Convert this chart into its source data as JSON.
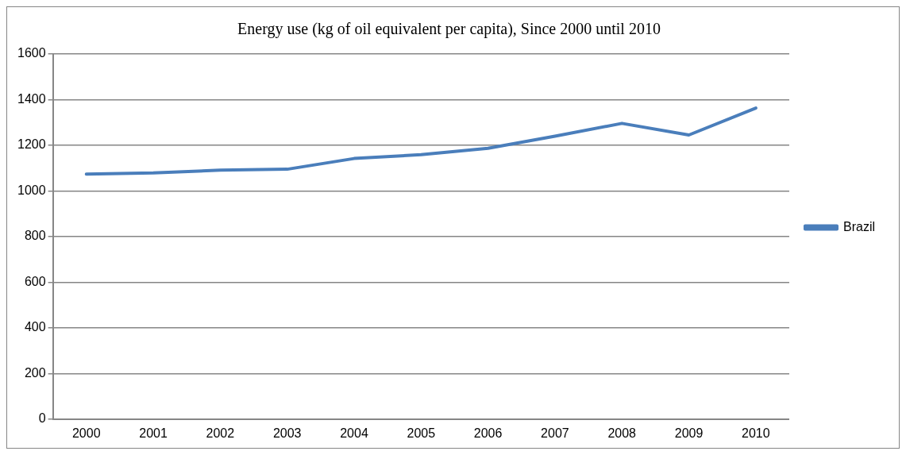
{
  "chart_data": {
    "type": "line",
    "title": "Energy use (kg of oil equivalent per capita), Since 2000 until 2010",
    "categories": [
      "2000",
      "2001",
      "2002",
      "2003",
      "2004",
      "2005",
      "2006",
      "2007",
      "2008",
      "2009",
      "2010"
    ],
    "series": [
      {
        "name": "Brazil",
        "color": "#4a7ebb",
        "values": [
          1074,
          1079,
          1091,
          1095,
          1142,
          1159,
          1187,
          1240,
          1296,
          1245,
          1363
        ]
      }
    ],
    "ylim": [
      0,
      1600
    ],
    "yticks": [
      0,
      200,
      400,
      600,
      800,
      1000,
      1200,
      1400,
      1600
    ],
    "grid": "y",
    "legend": "right",
    "marker": "none"
  }
}
